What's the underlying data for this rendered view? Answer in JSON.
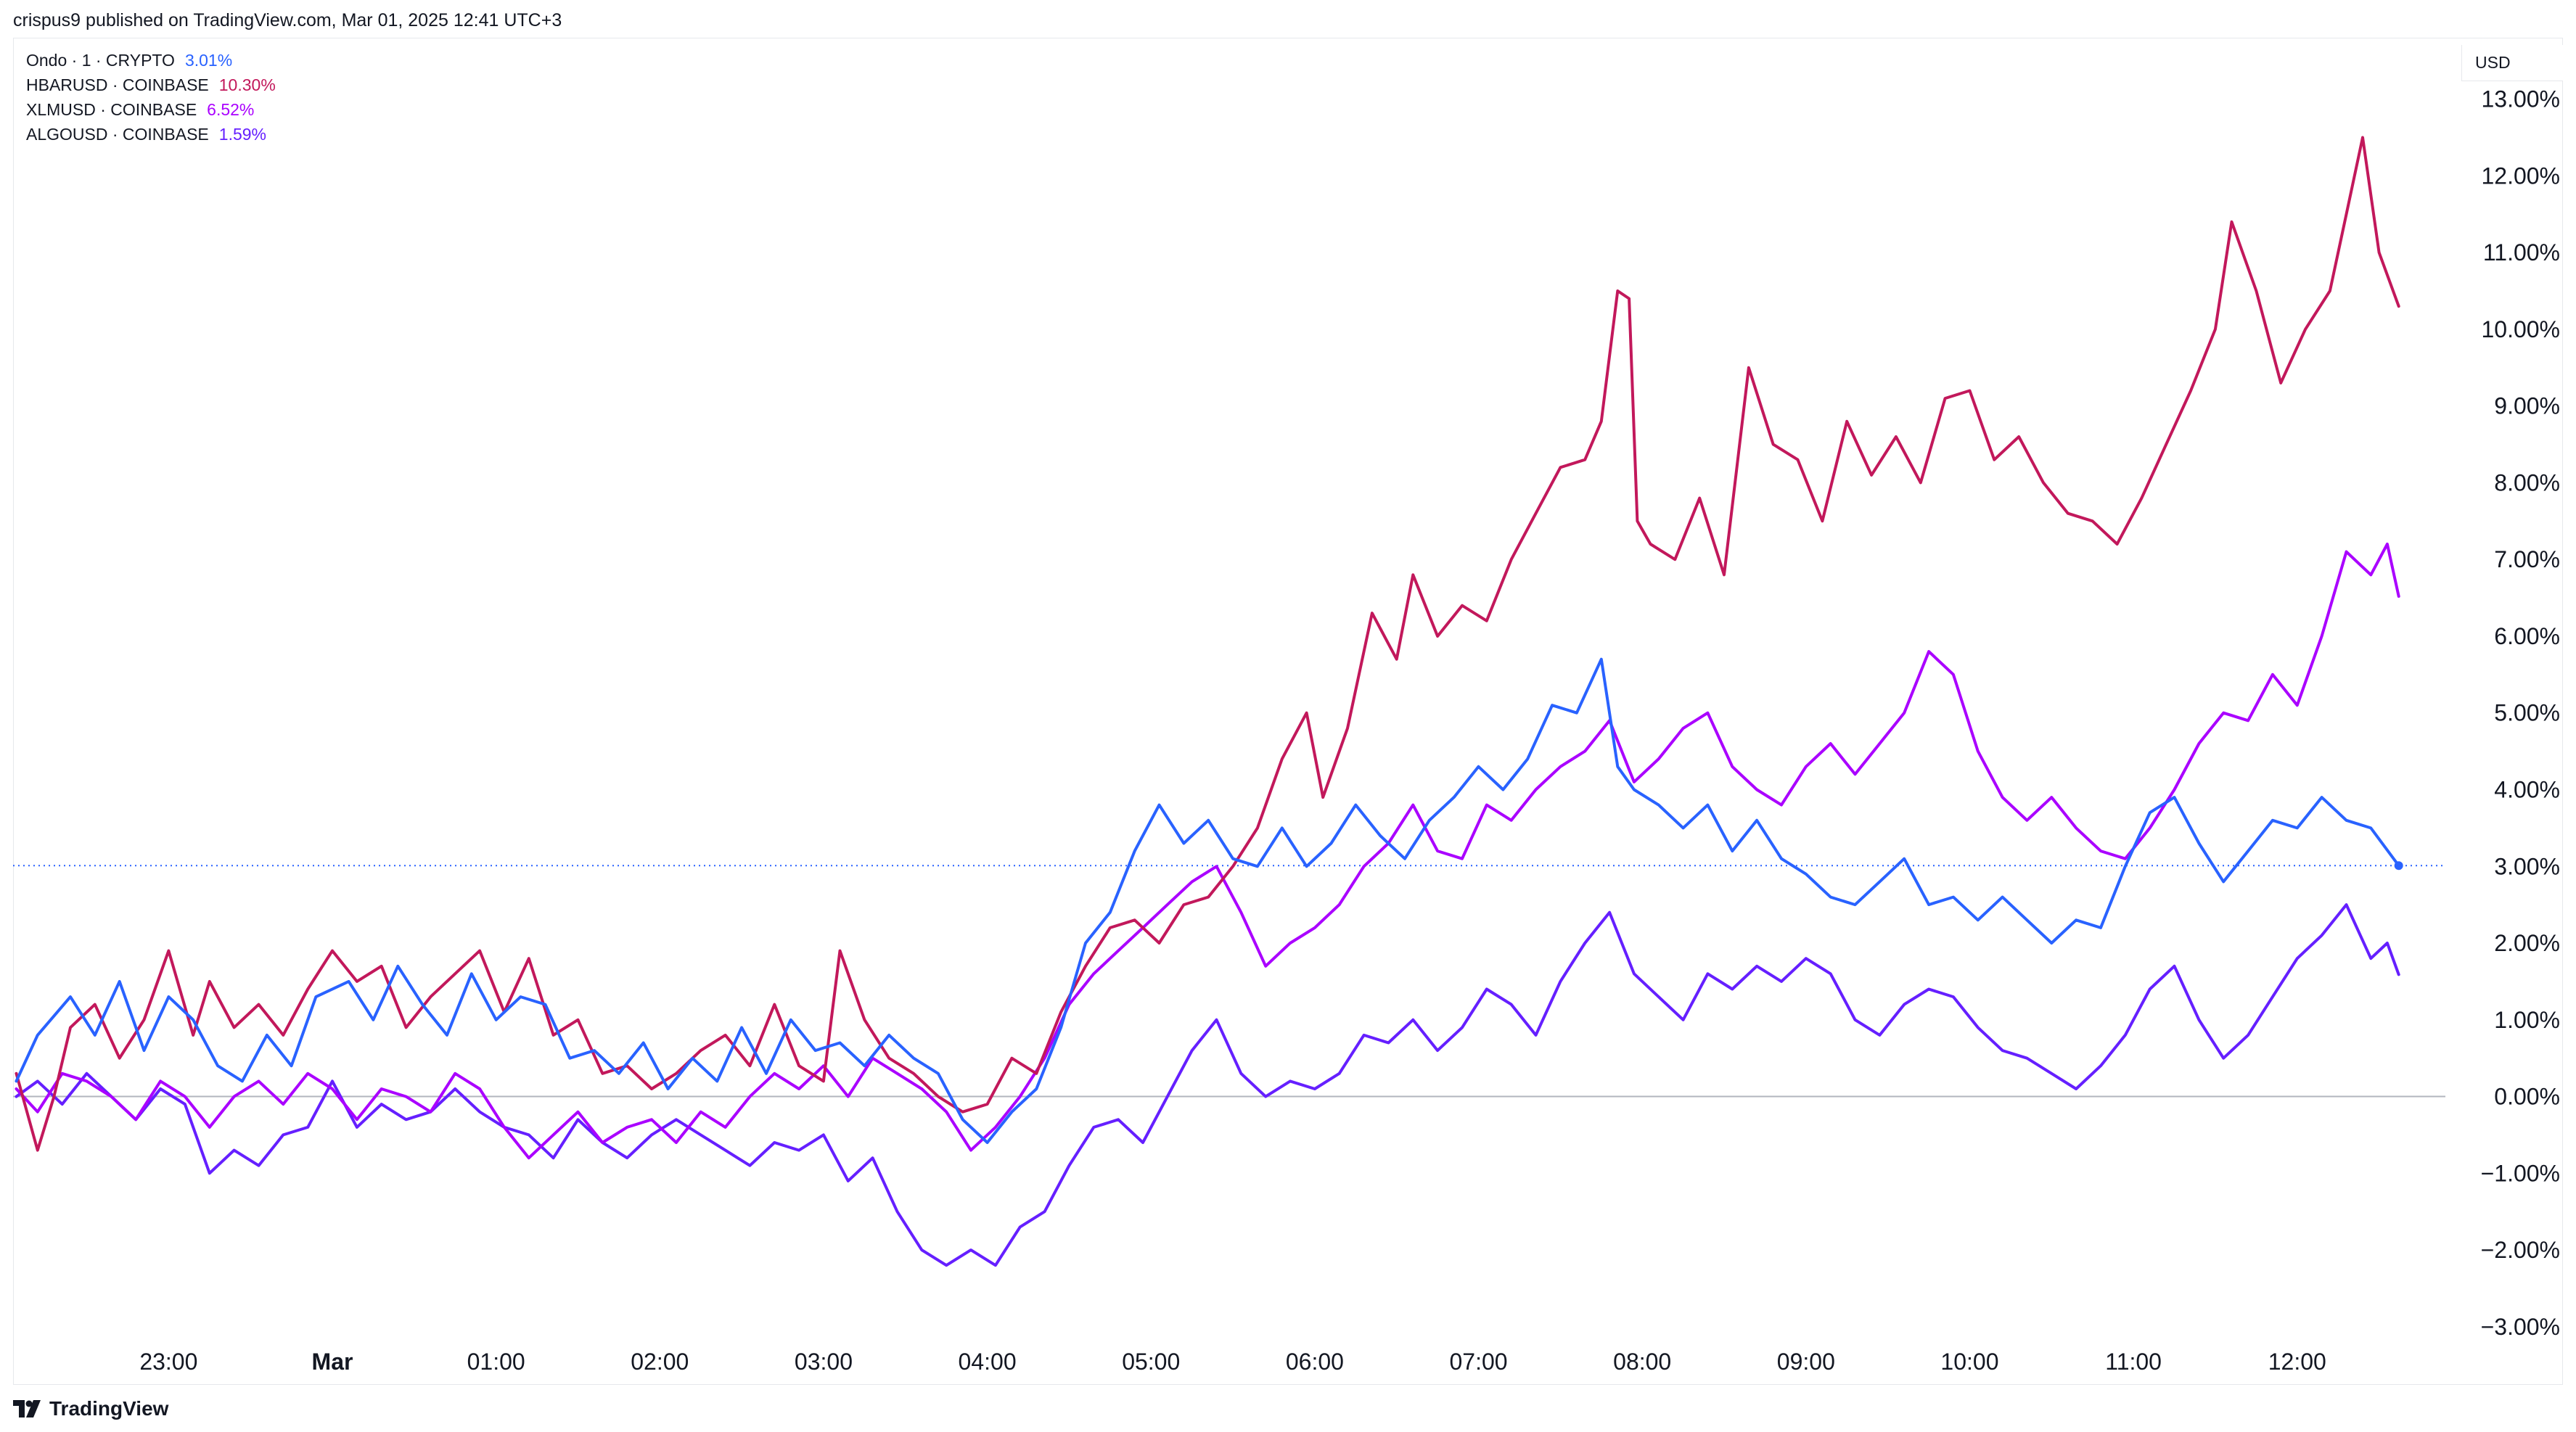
{
  "header": {
    "text": "crispus9 published on TradingView.com, Mar 01, 2025 12:41 UTC+3"
  },
  "unit": "USD",
  "brand": {
    "name": "TradingView"
  },
  "legend": [
    {
      "name": "Ondo · 1 · CRYPTO",
      "value": "3.01%",
      "color": "#2962ff"
    },
    {
      "name": "HBARUSD · COINBASE",
      "value": "10.30%",
      "color": "#c2185b"
    },
    {
      "name": "XLMUSD · COINBASE",
      "value": "6.52%",
      "color": "#aa00ff"
    },
    {
      "name": "ALGOUSD · COINBASE",
      "value": "1.59%",
      "color": "#651fff"
    }
  ],
  "chart_data": {
    "type": "line",
    "ylim": [
      -3.2,
      13.8
    ],
    "yticks": [
      "13.00%",
      "12.00%",
      "11.00%",
      "10.00%",
      "9.00%",
      "8.00%",
      "7.00%",
      "6.00%",
      "5.00%",
      "4.00%",
      "3.00%",
      "2.00%",
      "1.00%",
      "0.00%",
      "−1.00%",
      "−2.00%",
      "−3.00%"
    ],
    "ytick_values": [
      13,
      12,
      11,
      10,
      9,
      8,
      7,
      6,
      5,
      4,
      3,
      2,
      1,
      0,
      -1,
      -2,
      -3
    ],
    "xticks": [
      "23:00",
      "Mar",
      "01:00",
      "02:00",
      "03:00",
      "04:00",
      "05:00",
      "06:00",
      "07:00",
      "08:00",
      "09:00",
      "10:00",
      "11:00",
      "12:00"
    ],
    "xtick_hours": [
      -1,
      0,
      1,
      2,
      3,
      4,
      5,
      6,
      7,
      8,
      9,
      10,
      11,
      12
    ],
    "x_hours_range": [
      -1.95,
      12.75
    ],
    "reference_line": {
      "value": 3.01,
      "color": "#2962ff"
    },
    "zero_line": 0,
    "series": [
      {
        "name": "Ondo · 1 · CRYPTO",
        "color": "#2962ff",
        "x": [
          -1.93,
          -1.8,
          -1.6,
          -1.45,
          -1.3,
          -1.15,
          -1.0,
          -0.85,
          -0.7,
          -0.55,
          -0.4,
          -0.25,
          -0.1,
          0.1,
          0.25,
          0.4,
          0.55,
          0.7,
          0.85,
          1.0,
          1.15,
          1.3,
          1.45,
          1.6,
          1.75,
          1.9,
          2.05,
          2.2,
          2.35,
          2.5,
          2.65,
          2.8,
          2.95,
          3.1,
          3.25,
          3.4,
          3.55,
          3.7,
          3.85,
          4.0,
          4.15,
          4.3,
          4.45,
          4.6,
          4.75,
          4.9,
          5.05,
          5.2,
          5.35,
          5.5,
          5.65,
          5.8,
          5.95,
          6.1,
          6.25,
          6.4,
          6.55,
          6.7,
          6.85,
          7.0,
          7.15,
          7.3,
          7.45,
          7.6,
          7.75,
          7.85,
          7.95,
          8.1,
          8.25,
          8.4,
          8.55,
          8.7,
          8.85,
          9.0,
          9.15,
          9.3,
          9.45,
          9.6,
          9.75,
          9.9,
          10.05,
          10.2,
          10.35,
          10.5,
          10.65,
          10.8,
          10.95,
          11.1,
          11.25,
          11.4,
          11.55,
          11.7,
          11.85,
          12.0,
          12.15,
          12.3,
          12.45,
          12.62
        ],
        "y": [
          0.2,
          0.8,
          1.3,
          0.8,
          1.5,
          0.6,
          1.3,
          1.0,
          0.4,
          0.2,
          0.8,
          0.4,
          1.3,
          1.5,
          1.0,
          1.7,
          1.2,
          0.8,
          1.6,
          1.0,
          1.3,
          1.2,
          0.5,
          0.6,
          0.3,
          0.7,
          0.1,
          0.5,
          0.2,
          0.9,
          0.3,
          1.0,
          0.6,
          0.7,
          0.4,
          0.8,
          0.5,
          0.3,
          -0.3,
          -0.6,
          -0.2,
          0.1,
          0.9,
          2.0,
          2.4,
          3.2,
          3.8,
          3.3,
          3.6,
          3.1,
          3.0,
          3.5,
          3.0,
          3.3,
          3.8,
          3.4,
          3.1,
          3.6,
          3.9,
          4.3,
          4.0,
          4.4,
          5.1,
          5.0,
          5.7,
          4.3,
          4.0,
          3.8,
          3.5,
          3.8,
          3.2,
          3.6,
          3.1,
          2.9,
          2.6,
          2.5,
          2.8,
          3.1,
          2.5,
          2.6,
          2.3,
          2.6,
          2.3,
          2.0,
          2.3,
          2.2,
          3.0,
          3.7,
          3.9,
          3.3,
          2.8,
          3.2,
          3.6,
          3.5,
          3.9,
          3.6,
          3.5,
          3.01
        ]
      },
      {
        "name": "HBARUSD · COINBASE",
        "color": "#c2185b",
        "x": [
          -1.93,
          -1.8,
          -1.7,
          -1.6,
          -1.45,
          -1.3,
          -1.15,
          -1.0,
          -0.85,
          -0.75,
          -0.6,
          -0.45,
          -0.3,
          -0.15,
          0.0,
          0.15,
          0.3,
          0.45,
          0.6,
          0.75,
          0.9,
          1.05,
          1.2,
          1.35,
          1.5,
          1.65,
          1.8,
          1.95,
          2.1,
          2.25,
          2.4,
          2.55,
          2.7,
          2.85,
          3.0,
          3.1,
          3.25,
          3.4,
          3.55,
          3.7,
          3.85,
          4.0,
          4.15,
          4.3,
          4.45,
          4.6,
          4.75,
          4.9,
          5.05,
          5.2,
          5.35,
          5.5,
          5.65,
          5.8,
          5.95,
          6.05,
          6.2,
          6.35,
          6.5,
          6.6,
          6.75,
          6.9,
          7.05,
          7.2,
          7.35,
          7.5,
          7.65,
          7.75,
          7.85,
          7.92,
          7.97,
          8.05,
          8.2,
          8.35,
          8.5,
          8.65,
          8.8,
          8.95,
          9.1,
          9.25,
          9.4,
          9.55,
          9.7,
          9.85,
          10.0,
          10.15,
          10.3,
          10.45,
          10.6,
          10.75,
          10.9,
          11.05,
          11.2,
          11.35,
          11.5,
          11.6,
          11.75,
          11.9,
          12.05,
          12.2,
          12.3,
          12.4,
          12.5,
          12.62
        ],
        "y": [
          0.3,
          -0.7,
          0.0,
          0.9,
          1.2,
          0.5,
          1.0,
          1.9,
          0.8,
          1.5,
          0.9,
          1.2,
          0.8,
          1.4,
          1.9,
          1.5,
          1.7,
          0.9,
          1.3,
          1.6,
          1.9,
          1.1,
          1.8,
          0.8,
          1.0,
          0.3,
          0.4,
          0.1,
          0.3,
          0.6,
          0.8,
          0.4,
          1.2,
          0.4,
          0.2,
          1.9,
          1.0,
          0.5,
          0.3,
          0.0,
          -0.2,
          -0.1,
          0.5,
          0.3,
          1.1,
          1.7,
          2.2,
          2.3,
          2.0,
          2.5,
          2.6,
          3.0,
          3.5,
          4.4,
          5.0,
          3.9,
          4.8,
          6.3,
          5.7,
          6.8,
          6.0,
          6.4,
          6.2,
          7.0,
          7.6,
          8.2,
          8.3,
          8.8,
          10.5,
          10.4,
          7.5,
          7.2,
          7.0,
          7.8,
          6.8,
          9.5,
          8.5,
          8.3,
          7.5,
          8.8,
          8.1,
          8.6,
          8.0,
          9.1,
          9.2,
          8.3,
          8.6,
          8.0,
          7.6,
          7.5,
          7.2,
          7.8,
          8.5,
          9.2,
          10.0,
          11.4,
          10.5,
          9.3,
          10.0,
          10.5,
          11.5,
          12.5,
          11.0,
          10.3
        ]
      },
      {
        "name": "XLMUSD · COINBASE",
        "color": "#aa00ff",
        "x": [
          -1.93,
          -1.8,
          -1.65,
          -1.5,
          -1.35,
          -1.2,
          -1.05,
          -0.9,
          -0.75,
          -0.6,
          -0.45,
          -0.3,
          -0.15,
          0.0,
          0.15,
          0.3,
          0.45,
          0.6,
          0.75,
          0.9,
          1.05,
          1.2,
          1.35,
          1.5,
          1.65,
          1.8,
          1.95,
          2.1,
          2.25,
          2.4,
          2.55,
          2.7,
          2.85,
          3.0,
          3.15,
          3.3,
          3.45,
          3.6,
          3.75,
          3.9,
          4.05,
          4.2,
          4.35,
          4.5,
          4.65,
          4.8,
          4.95,
          5.1,
          5.25,
          5.4,
          5.55,
          5.7,
          5.85,
          6.0,
          6.15,
          6.3,
          6.45,
          6.6,
          6.75,
          6.9,
          7.05,
          7.2,
          7.35,
          7.5,
          7.65,
          7.8,
          7.95,
          8.1,
          8.25,
          8.4,
          8.55,
          8.7,
          8.85,
          9.0,
          9.15,
          9.3,
          9.45,
          9.6,
          9.75,
          9.9,
          10.05,
          10.2,
          10.35,
          10.5,
          10.65,
          10.8,
          10.95,
          11.1,
          11.25,
          11.4,
          11.55,
          11.7,
          11.85,
          12.0,
          12.15,
          12.3,
          12.45,
          12.55,
          12.62
        ],
        "y": [
          0.1,
          -0.2,
          0.3,
          0.2,
          0.0,
          -0.3,
          0.2,
          0.0,
          -0.4,
          0.0,
          0.2,
          -0.1,
          0.3,
          0.1,
          -0.3,
          0.1,
          0.0,
          -0.2,
          0.3,
          0.1,
          -0.4,
          -0.8,
          -0.5,
          -0.2,
          -0.6,
          -0.4,
          -0.3,
          -0.6,
          -0.2,
          -0.4,
          0.0,
          0.3,
          0.1,
          0.4,
          0.0,
          0.5,
          0.3,
          0.1,
          -0.2,
          -0.7,
          -0.4,
          0.0,
          0.5,
          1.2,
          1.6,
          1.9,
          2.2,
          2.5,
          2.8,
          3.0,
          2.4,
          1.7,
          2.0,
          2.2,
          2.5,
          3.0,
          3.3,
          3.8,
          3.2,
          3.1,
          3.8,
          3.6,
          4.0,
          4.3,
          4.5,
          4.9,
          4.1,
          4.4,
          4.8,
          5.0,
          4.3,
          4.0,
          3.8,
          4.3,
          4.6,
          4.2,
          4.6,
          5.0,
          5.8,
          5.5,
          4.5,
          3.9,
          3.6,
          3.9,
          3.5,
          3.2,
          3.1,
          3.5,
          4.0,
          4.6,
          5.0,
          4.9,
          5.5,
          5.1,
          6.0,
          7.1,
          6.8,
          7.2,
          6.52
        ]
      },
      {
        "name": "ALGOUSD · COINBASE",
        "color": "#651fff",
        "x": [
          -1.93,
          -1.8,
          -1.65,
          -1.5,
          -1.35,
          -1.2,
          -1.05,
          -0.9,
          -0.75,
          -0.6,
          -0.45,
          -0.3,
          -0.15,
          0.0,
          0.15,
          0.3,
          0.45,
          0.6,
          0.75,
          0.9,
          1.05,
          1.2,
          1.35,
          1.5,
          1.65,
          1.8,
          1.95,
          2.1,
          2.25,
          2.4,
          2.55,
          2.7,
          2.85,
          3.0,
          3.15,
          3.3,
          3.45,
          3.6,
          3.75,
          3.9,
          4.05,
          4.2,
          4.35,
          4.5,
          4.65,
          4.8,
          4.95,
          5.1,
          5.25,
          5.4,
          5.55,
          5.7,
          5.85,
          6.0,
          6.15,
          6.3,
          6.45,
          6.6,
          6.75,
          6.9,
          7.05,
          7.2,
          7.35,
          7.5,
          7.65,
          7.8,
          7.95,
          8.1,
          8.25,
          8.4,
          8.55,
          8.7,
          8.85,
          9.0,
          9.15,
          9.3,
          9.45,
          9.6,
          9.75,
          9.9,
          10.05,
          10.2,
          10.35,
          10.5,
          10.65,
          10.8,
          10.95,
          11.1,
          11.25,
          11.4,
          11.55,
          11.7,
          11.85,
          12.0,
          12.15,
          12.3,
          12.45,
          12.55,
          12.62
        ],
        "y": [
          0.0,
          0.2,
          -0.1,
          0.3,
          0.0,
          -0.3,
          0.1,
          -0.1,
          -1.0,
          -0.7,
          -0.9,
          -0.5,
          -0.4,
          0.2,
          -0.4,
          -0.1,
          -0.3,
          -0.2,
          0.1,
          -0.2,
          -0.4,
          -0.5,
          -0.8,
          -0.3,
          -0.6,
          -0.8,
          -0.5,
          -0.3,
          -0.5,
          -0.7,
          -0.9,
          -0.6,
          -0.7,
          -0.5,
          -1.1,
          -0.8,
          -1.5,
          -2.0,
          -2.2,
          -2.0,
          -2.2,
          -1.7,
          -1.5,
          -0.9,
          -0.4,
          -0.3,
          -0.6,
          0.0,
          0.6,
          1.0,
          0.3,
          0.0,
          0.2,
          0.1,
          0.3,
          0.8,
          0.7,
          1.0,
          0.6,
          0.9,
          1.4,
          1.2,
          0.8,
          1.5,
          2.0,
          2.4,
          1.6,
          1.3,
          1.0,
          1.6,
          1.4,
          1.7,
          1.5,
          1.8,
          1.6,
          1.0,
          0.8,
          1.2,
          1.4,
          1.3,
          0.9,
          0.6,
          0.5,
          0.3,
          0.1,
          0.4,
          0.8,
          1.4,
          1.7,
          1.0,
          0.5,
          0.8,
          1.3,
          1.8,
          2.1,
          2.5,
          1.8,
          2.0,
          1.59
        ]
      }
    ]
  }
}
